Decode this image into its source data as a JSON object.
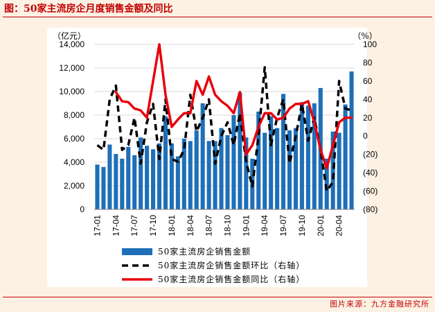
{
  "header": {
    "title": "图：50家主流房企月度销售金额及同比"
  },
  "footer": {
    "source": "图片来源：九方金融研究所"
  },
  "chart_data": {
    "type": "bar+line",
    "title": "50家主流房企月度销售金额及同比",
    "categories": [
      "17-01",
      "17-02",
      "17-03",
      "17-04",
      "17-05",
      "17-06",
      "17-07",
      "17-08",
      "17-09",
      "17-10",
      "17-11",
      "17-12",
      "18-01",
      "18-02",
      "18-03",
      "18-04",
      "18-05",
      "18-06",
      "18-07",
      "18-08",
      "18-09",
      "18-10",
      "18-11",
      "18-12",
      "19-01",
      "19-02",
      "19-03",
      "19-04",
      "19-05",
      "19-06",
      "19-07",
      "19-08",
      "19-09",
      "19-10",
      "19-11",
      "19-12",
      "20-01",
      "20-02",
      "20-03",
      "20-04",
      "20-05",
      "20-06"
    ],
    "x_tick_labels": [
      "17-01",
      "17-04",
      "17-07",
      "17-10",
      "18-01",
      "18-04",
      "18-07",
      "18-10",
      "19-01",
      "19-04",
      "19-07",
      "19-10",
      "20-01",
      "20-04"
    ],
    "left_axis": {
      "unit": "（亿元）",
      "ylim": [
        0,
        14000
      ],
      "ticks": [
        "0",
        "2,000",
        "4,000",
        "6,000",
        "8,000",
        "10,000",
        "12,000",
        "14,000"
      ]
    },
    "right_axis": {
      "unit": "（%）",
      "ylim": [
        -80,
        100
      ],
      "ticks": [
        "(80)",
        "(60)",
        "(40)",
        "(20)",
        "0",
        "20",
        "40",
        "60",
        "80",
        "100"
      ]
    },
    "series": [
      {
        "name": "50家主流房企销售金额",
        "type": "bar",
        "axis": "left",
        "color": "#1f6fb8",
        "values": [
          3800,
          3600,
          5500,
          4700,
          4300,
          5300,
          4600,
          6100,
          5400,
          5100,
          5600,
          7900,
          5600,
          4500,
          6000,
          5800,
          6700,
          9000,
          5800,
          5800,
          6900,
          6300,
          8000,
          9900,
          6100,
          4300,
          8300,
          6500,
          7900,
          6900,
          9800,
          6700,
          6900,
          9100,
          8800,
          9000,
          10300,
          4300,
          6600,
          6500,
          8900,
          11700
        ]
      },
      {
        "name": "50家主流房企销售金额环比（右轴）",
        "type": "line",
        "axis": "right",
        "color": "#000000",
        "dash": true,
        "values": [
          -10,
          -15,
          40,
          55,
          -15,
          -10,
          20,
          -30,
          15,
          35,
          -25,
          40,
          -25,
          -28,
          -15,
          45,
          5,
          20,
          40,
          -30,
          0,
          15,
          -10,
          25,
          -28,
          -55,
          0,
          75,
          -10,
          20,
          40,
          -30,
          0,
          35,
          -5,
          20,
          -15,
          -60,
          -50,
          60,
          30,
          28
        ]
      },
      {
        "name": "50家主流房企销售金额同比（右轴）",
        "type": "line",
        "axis": "right",
        "color": "#e8000b",
        "dash": false,
        "values": [
          null,
          null,
          null,
          48,
          38,
          37,
          30,
          28,
          20,
          60,
          100,
          45,
          10,
          18,
          25,
          25,
          60,
          45,
          65,
          45,
          38,
          33,
          25,
          48,
          -20,
          -10,
          10,
          25,
          25,
          18,
          20,
          30,
          35,
          35,
          38,
          15,
          -15,
          -35,
          -10,
          15,
          20,
          20
        ]
      }
    ],
    "legend": [
      "50家主流房企销售金额",
      "50家主流房企销售金额环比（右轴）",
      "50家主流房企销售金额同比（右轴）"
    ],
    "legend_position": "bottom",
    "grid": "horizontal"
  }
}
